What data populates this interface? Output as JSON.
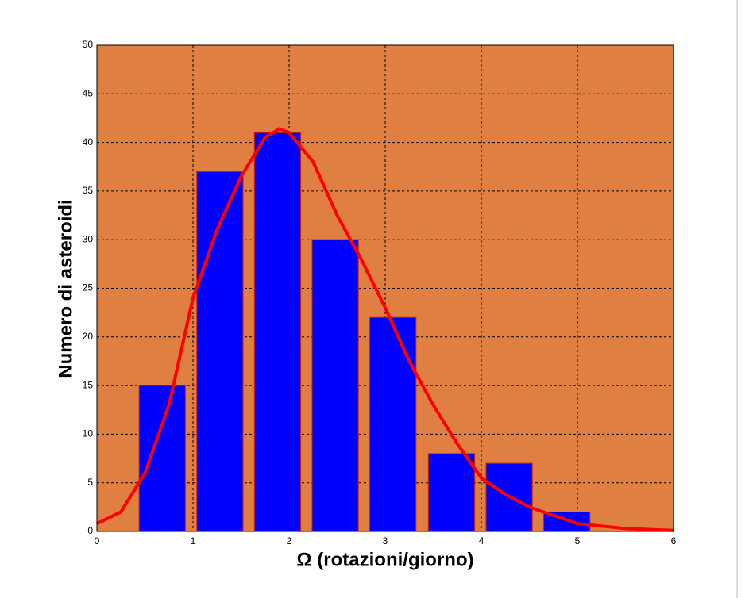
{
  "chart_data": {
    "type": "bar",
    "xlabel": "Ω (rotazioni/giorno)",
    "ylabel": "Numero di asteroidi",
    "xlim": [
      0,
      6
    ],
    "xticks": [
      0,
      1,
      2,
      3,
      4,
      5,
      6
    ],
    "ylim": [
      0,
      50
    ],
    "yticks": [
      0,
      5,
      10,
      15,
      20,
      25,
      30,
      35,
      40,
      45,
      50
    ],
    "grid": true,
    "background": "#df7f42",
    "series": [
      {
        "type": "bar",
        "color": "#0000ff",
        "edgecolor": "#cc2200",
        "x": [
          0.68,
          1.28,
          1.88,
          2.48,
          3.08,
          3.69,
          4.29,
          4.89
        ],
        "values": [
          15,
          37,
          41,
          30,
          22,
          8,
          7,
          2
        ]
      },
      {
        "type": "line",
        "color": "#ff0000",
        "x": [
          0,
          0.25,
          0.5,
          0.75,
          1,
          1.25,
          1.5,
          1.75,
          1.9,
          2,
          2.25,
          2.5,
          2.75,
          3,
          3.25,
          3.5,
          3.75,
          4,
          4.25,
          4.5,
          5,
          5.5,
          6
        ],
        "values": [
          0.8,
          2,
          6,
          13,
          24,
          31,
          36.5,
          40.5,
          41.4,
          41,
          38,
          32.5,
          28,
          23,
          17.5,
          13,
          9,
          5.5,
          3.8,
          2.5,
          0.8,
          0.3,
          0.1
        ]
      }
    ]
  }
}
